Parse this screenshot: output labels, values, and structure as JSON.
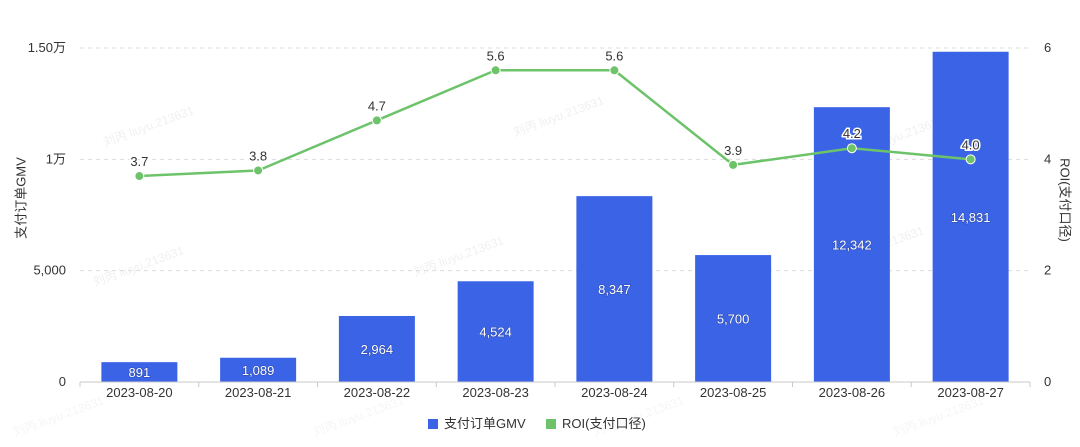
{
  "chart_data": {
    "type": "bar",
    "categories": [
      "2023-08-20",
      "2023-08-21",
      "2023-08-22",
      "2023-08-23",
      "2023-08-24",
      "2023-08-25",
      "2023-08-26",
      "2023-08-27"
    ],
    "series": [
      {
        "name": "支付订单GMV",
        "type": "bar",
        "axis": "left",
        "color": "#3a63e6",
        "values": [
          891,
          1089,
          2964,
          4524,
          8347,
          5700,
          12342,
          14831
        ],
        "labels": [
          "891",
          "1,089",
          "2,964",
          "4,524",
          "8,347",
          "5,700",
          "12,342",
          "14,831"
        ]
      },
      {
        "name": "ROI(支付口径)",
        "type": "line",
        "axis": "right",
        "color": "#6cc36a",
        "values": [
          3.7,
          3.8,
          4.7,
          5.6,
          5.6,
          3.9,
          4.2,
          4.0
        ],
        "labels": [
          "3.7",
          "3.8",
          "4.7",
          "5.6",
          "5.6",
          "3.9",
          "4.2",
          "4.0"
        ]
      }
    ],
    "ylabel": "支付订单GMV",
    "y2label": "ROI(支付口径)",
    "ylim": [
      0,
      15000
    ],
    "y_ticks": [
      {
        "value": 0,
        "label": "0"
      },
      {
        "value": 5000,
        "label": "5,000"
      },
      {
        "value": 10000,
        "label": "1万"
      },
      {
        "value": 15000,
        "label": "1.50万"
      }
    ],
    "y2lim": [
      0,
      6
    ],
    "y2_ticks": [
      {
        "value": 0,
        "label": "0"
      },
      {
        "value": 2,
        "label": "2"
      },
      {
        "value": 4,
        "label": "4"
      },
      {
        "value": 6,
        "label": "6"
      }
    ],
    "grid": true,
    "legend_position": "bottom-center",
    "watermark": "刘丙 liuyu.213631"
  }
}
